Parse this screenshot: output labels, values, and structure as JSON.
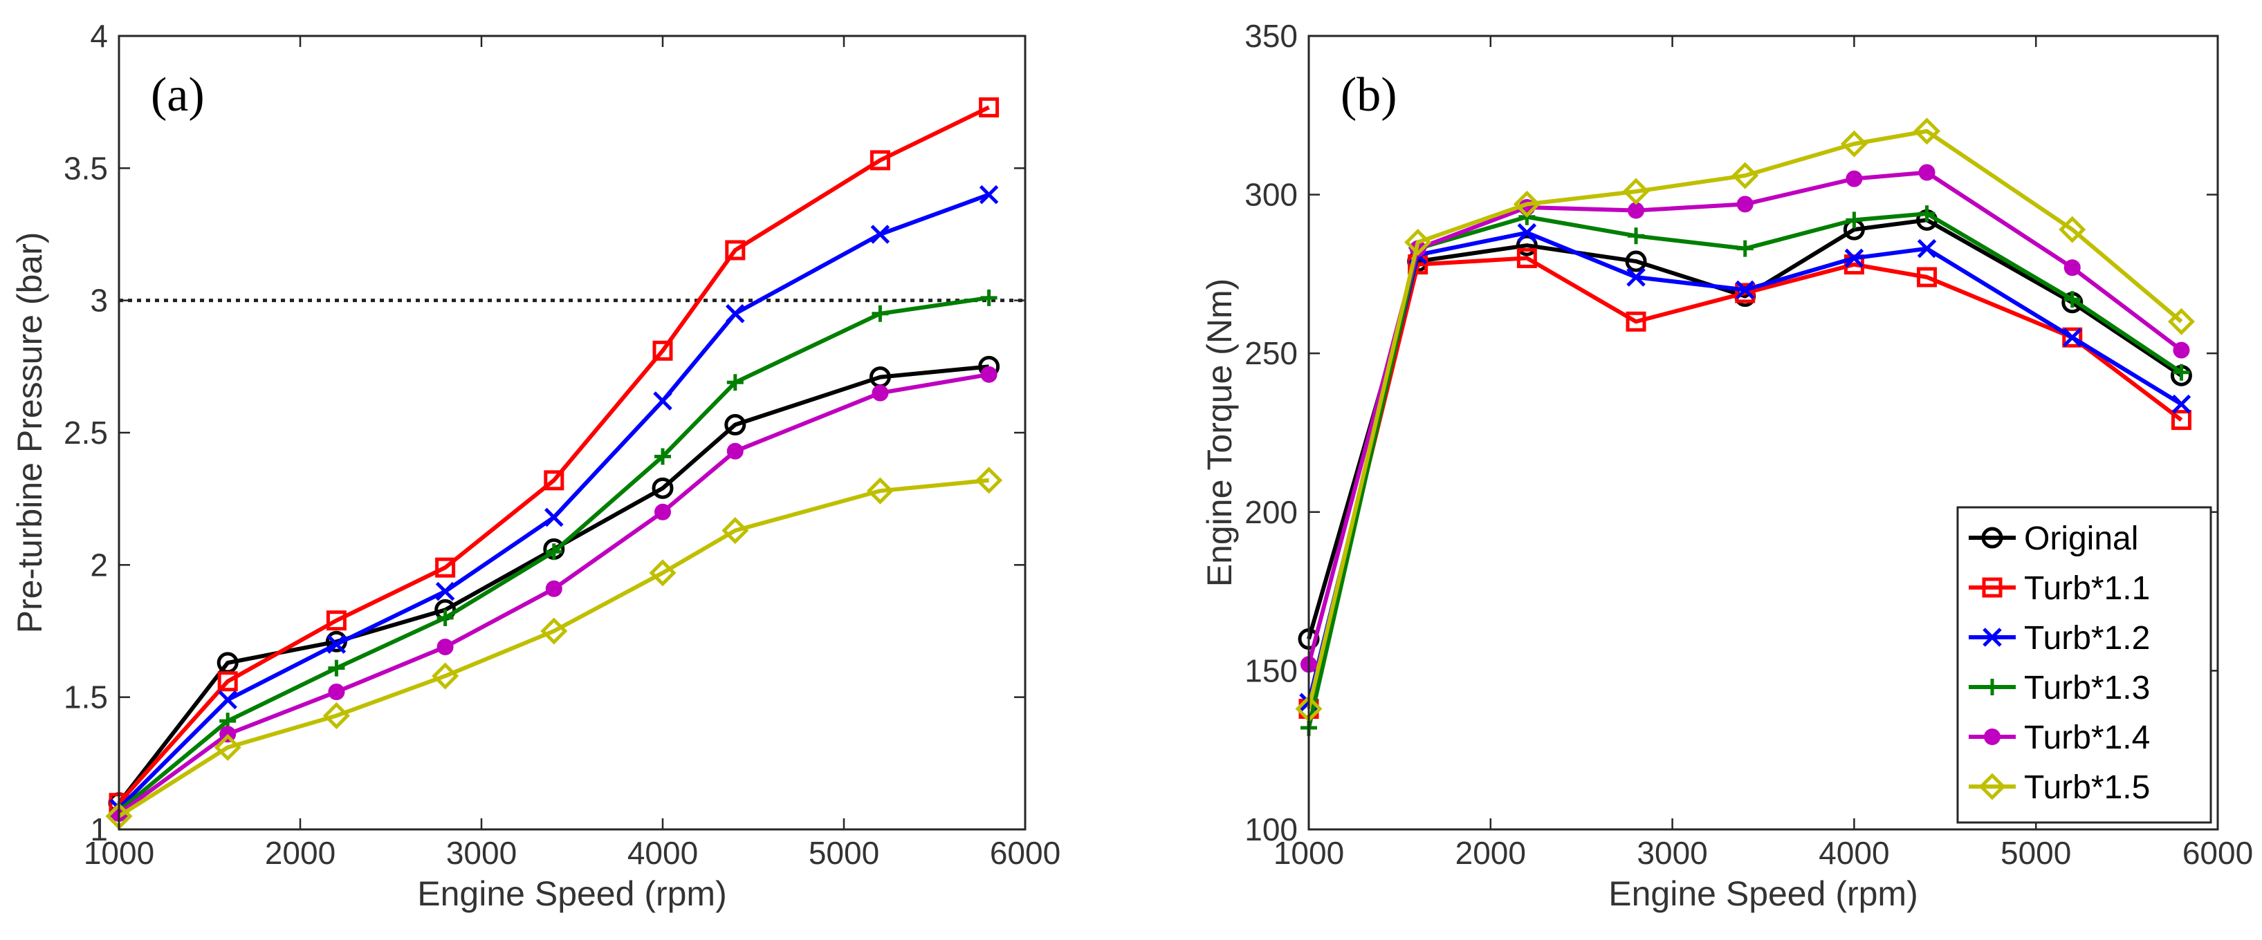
{
  "chart_data": [
    {
      "type": "line",
      "panel_label": "(a)",
      "title": "",
      "xlabel": "Engine Speed (rpm)",
      "ylabel": "Pre-turbine Pressure (bar)",
      "xlim": [
        1000,
        6000
      ],
      "ylim": [
        1,
        4
      ],
      "xticks": [
        1000,
        2000,
        3000,
        4000,
        5000,
        6000
      ],
      "yticks": [
        1,
        1.5,
        2,
        2.5,
        3,
        3.5,
        4
      ],
      "xtick_labels": [
        "1000",
        "2000",
        "3000",
        "4000",
        "5000",
        "6000"
      ],
      "ytick_labels": [
        "1",
        "1.5",
        "2",
        "2.5",
        "3",
        "3.5",
        "4"
      ],
      "reference_line": {
        "y": 3,
        "style": "dotted"
      },
      "x": [
        1000,
        1600,
        2200,
        2800,
        3400,
        4000,
        4400,
        5200,
        5800
      ],
      "series": [
        {
          "name": "Original",
          "color": "#000000",
          "marker": "circle",
          "values": [
            1.1,
            1.63,
            1.71,
            1.83,
            2.06,
            2.29,
            2.53,
            2.71,
            2.75
          ]
        },
        {
          "name": "Turb*1.1",
          "color": "#ff0000",
          "marker": "square",
          "values": [
            1.1,
            1.56,
            1.79,
            1.99,
            2.32,
            2.81,
            3.19,
            3.53,
            3.73
          ]
        },
        {
          "name": "Turb*1.2",
          "color": "#0000ff",
          "marker": "x",
          "values": [
            1.08,
            1.49,
            1.7,
            1.9,
            2.18,
            2.62,
            2.95,
            3.25,
            3.4
          ]
        },
        {
          "name": "Turb*1.3",
          "color": "#007f00",
          "marker": "plus",
          "values": [
            1.07,
            1.41,
            1.61,
            1.8,
            2.05,
            2.41,
            2.69,
            2.95,
            3.01
          ]
        },
        {
          "name": "Turb*1.4",
          "color": "#bf00bf",
          "marker": "dot",
          "values": [
            1.06,
            1.36,
            1.52,
            1.69,
            1.91,
            2.2,
            2.43,
            2.65,
            2.72
          ]
        },
        {
          "name": "Turb*1.5",
          "color": "#bfbf00",
          "marker": "diamond",
          "values": [
            1.05,
            1.31,
            1.43,
            1.58,
            1.75,
            1.97,
            2.13,
            2.28,
            2.32
          ]
        }
      ]
    },
    {
      "type": "line",
      "panel_label": "(b)",
      "title": "",
      "xlabel": "Engine Speed (rpm)",
      "ylabel": "Engine Torque (Nm)",
      "xlim": [
        1000,
        6000
      ],
      "ylim": [
        100,
        350
      ],
      "xticks": [
        1000,
        2000,
        3000,
        4000,
        5000,
        6000
      ],
      "yticks": [
        100,
        150,
        200,
        250,
        300,
        350
      ],
      "xtick_labels": [
        "1000",
        "2000",
        "3000",
        "4000",
        "5000",
        "6000"
      ],
      "ytick_labels": [
        "100",
        "150",
        "200",
        "250",
        "300",
        "350"
      ],
      "legend_position": "bottom-right",
      "x": [
        1000,
        1600,
        2200,
        2800,
        3400,
        4000,
        4400,
        5200,
        5800
      ],
      "series": [
        {
          "name": "Original",
          "color": "#000000",
          "marker": "circle",
          "values": [
            160,
            279,
            284,
            279,
            268,
            289,
            292,
            266,
            243
          ]
        },
        {
          "name": "Turb*1.1",
          "color": "#ff0000",
          "marker": "square",
          "values": [
            138,
            278,
            280,
            260,
            269,
            278,
            274,
            255,
            229
          ]
        },
        {
          "name": "Turb*1.2",
          "color": "#0000ff",
          "marker": "x",
          "values": [
            140,
            281,
            288,
            274,
            270,
            280,
            283,
            255,
            234
          ]
        },
        {
          "name": "Turb*1.3",
          "color": "#007f00",
          "marker": "plus",
          "values": [
            132,
            283,
            293,
            287,
            283,
            292,
            294,
            267,
            244
          ]
        },
        {
          "name": "Turb*1.4",
          "color": "#bf00bf",
          "marker": "dot",
          "values": [
            152,
            283,
            296,
            295,
            297,
            305,
            307,
            277,
            251
          ]
        },
        {
          "name": "Turb*1.5",
          "color": "#bfbf00",
          "marker": "diamond",
          "values": [
            138,
            285,
            297,
            301,
            306,
            316,
            320,
            289,
            260
          ]
        }
      ]
    }
  ]
}
